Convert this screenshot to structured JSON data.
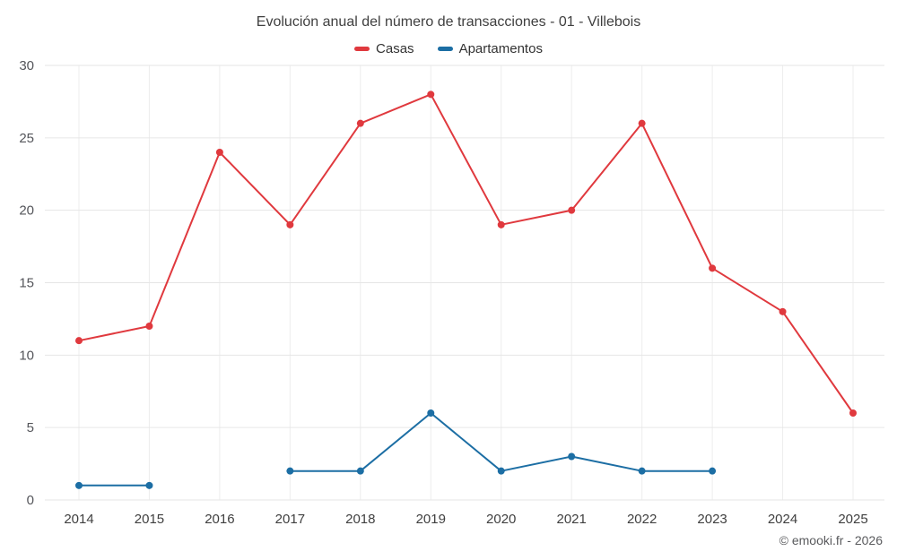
{
  "chart": {
    "title": "Evolución anual del número de transacciones - 01 - Villebois",
    "copyright": "© emooki.fr - 2026"
  },
  "legend": {
    "items": [
      {
        "label": "Casas",
        "color": "#e0393e"
      },
      {
        "label": "Apartamentos",
        "color": "#1c6ea4"
      }
    ]
  },
  "chart_data": {
    "type": "line",
    "title": "Evolución anual del número de transacciones - 01 - Villebois",
    "categories": [
      "2014",
      "2015",
      "2016",
      "2017",
      "2018",
      "2019",
      "2020",
      "2021",
      "2022",
      "2023",
      "2024",
      "2025"
    ],
    "series": [
      {
        "name": "Casas",
        "color": "#e0393e",
        "values": [
          11,
          12,
          24,
          19,
          26,
          28,
          19,
          20,
          26,
          16,
          13,
          6
        ]
      },
      {
        "name": "Apartamentos",
        "color": "#1c6ea4",
        "values": [
          1,
          1,
          null,
          2,
          2,
          6,
          2,
          3,
          2,
          2,
          null,
          null
        ]
      }
    ],
    "xlabel": "",
    "ylabel": "",
    "ylim": [
      0,
      30
    ],
    "yticks": [
      0,
      5,
      10,
      15,
      20,
      25,
      30
    ],
    "grid": true,
    "legend_position": "top"
  }
}
